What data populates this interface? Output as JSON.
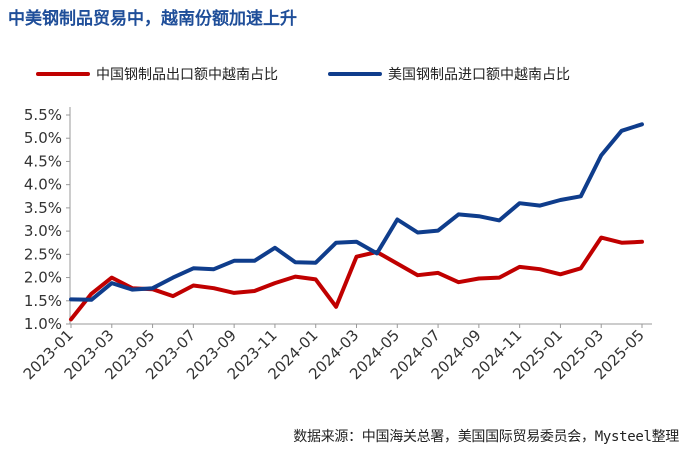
{
  "title": "中美钢制品贸易中，越南份额加速上升",
  "source": "数据来源：中国海关总署，美国国际贸易委员会，Mysteel整理",
  "chart_data": {
    "type": "line",
    "x": [
      "2023-01",
      "2023-02",
      "2023-03",
      "2023-04",
      "2023-05",
      "2023-06",
      "2023-07",
      "2023-08",
      "2023-09",
      "2023-10",
      "2023-11",
      "2023-12",
      "2024-01",
      "2024-02",
      "2024-03",
      "2024-04",
      "2024-05",
      "2024-06",
      "2024-07",
      "2024-08",
      "2024-09",
      "2024-10",
      "2024-11",
      "2024-12",
      "2025-01",
      "2025-02",
      "2025-03",
      "2025-04",
      "2025-05"
    ],
    "xticks": [
      "2023-01",
      "2023-03",
      "2023-05",
      "2023-07",
      "2023-09",
      "2023-11",
      "2024-01",
      "2024-03",
      "2024-05",
      "2024-07",
      "2024-09",
      "2024-11",
      "2025-01",
      "2025-03",
      "2025-05"
    ],
    "yticks": [
      "1.0%",
      "1.5%",
      "2.0%",
      "2.5%",
      "3.0%",
      "3.5%",
      "4.0%",
      "4.5%",
      "5.0%",
      "5.5%"
    ],
    "ylim": [
      1.0,
      5.5
    ],
    "legend_position": "top",
    "grid": false,
    "series": [
      {
        "name": "中国钢制品出口额中越南占比",
        "color": "#c00000",
        "values": [
          1.1,
          1.65,
          2.0,
          1.77,
          1.75,
          1.6,
          1.83,
          1.77,
          1.67,
          1.71,
          1.88,
          2.02,
          1.96,
          1.37,
          2.45,
          2.55,
          2.3,
          2.05,
          2.1,
          1.9,
          1.98,
          2.0,
          2.23,
          2.18,
          2.07,
          2.2,
          2.86,
          2.75,
          2.77
        ]
      },
      {
        "name": "美国钢制品进口额中越南占比",
        "color": "#0f3d8c",
        "values": [
          1.53,
          1.52,
          1.88,
          1.74,
          1.77,
          2.0,
          2.2,
          2.18,
          2.36,
          2.36,
          2.64,
          2.33,
          2.32,
          2.75,
          2.77,
          2.52,
          3.25,
          2.97,
          3.01,
          3.36,
          3.32,
          3.23,
          3.6,
          3.55,
          3.67,
          3.75,
          4.63,
          5.16,
          5.3
        ]
      }
    ]
  }
}
